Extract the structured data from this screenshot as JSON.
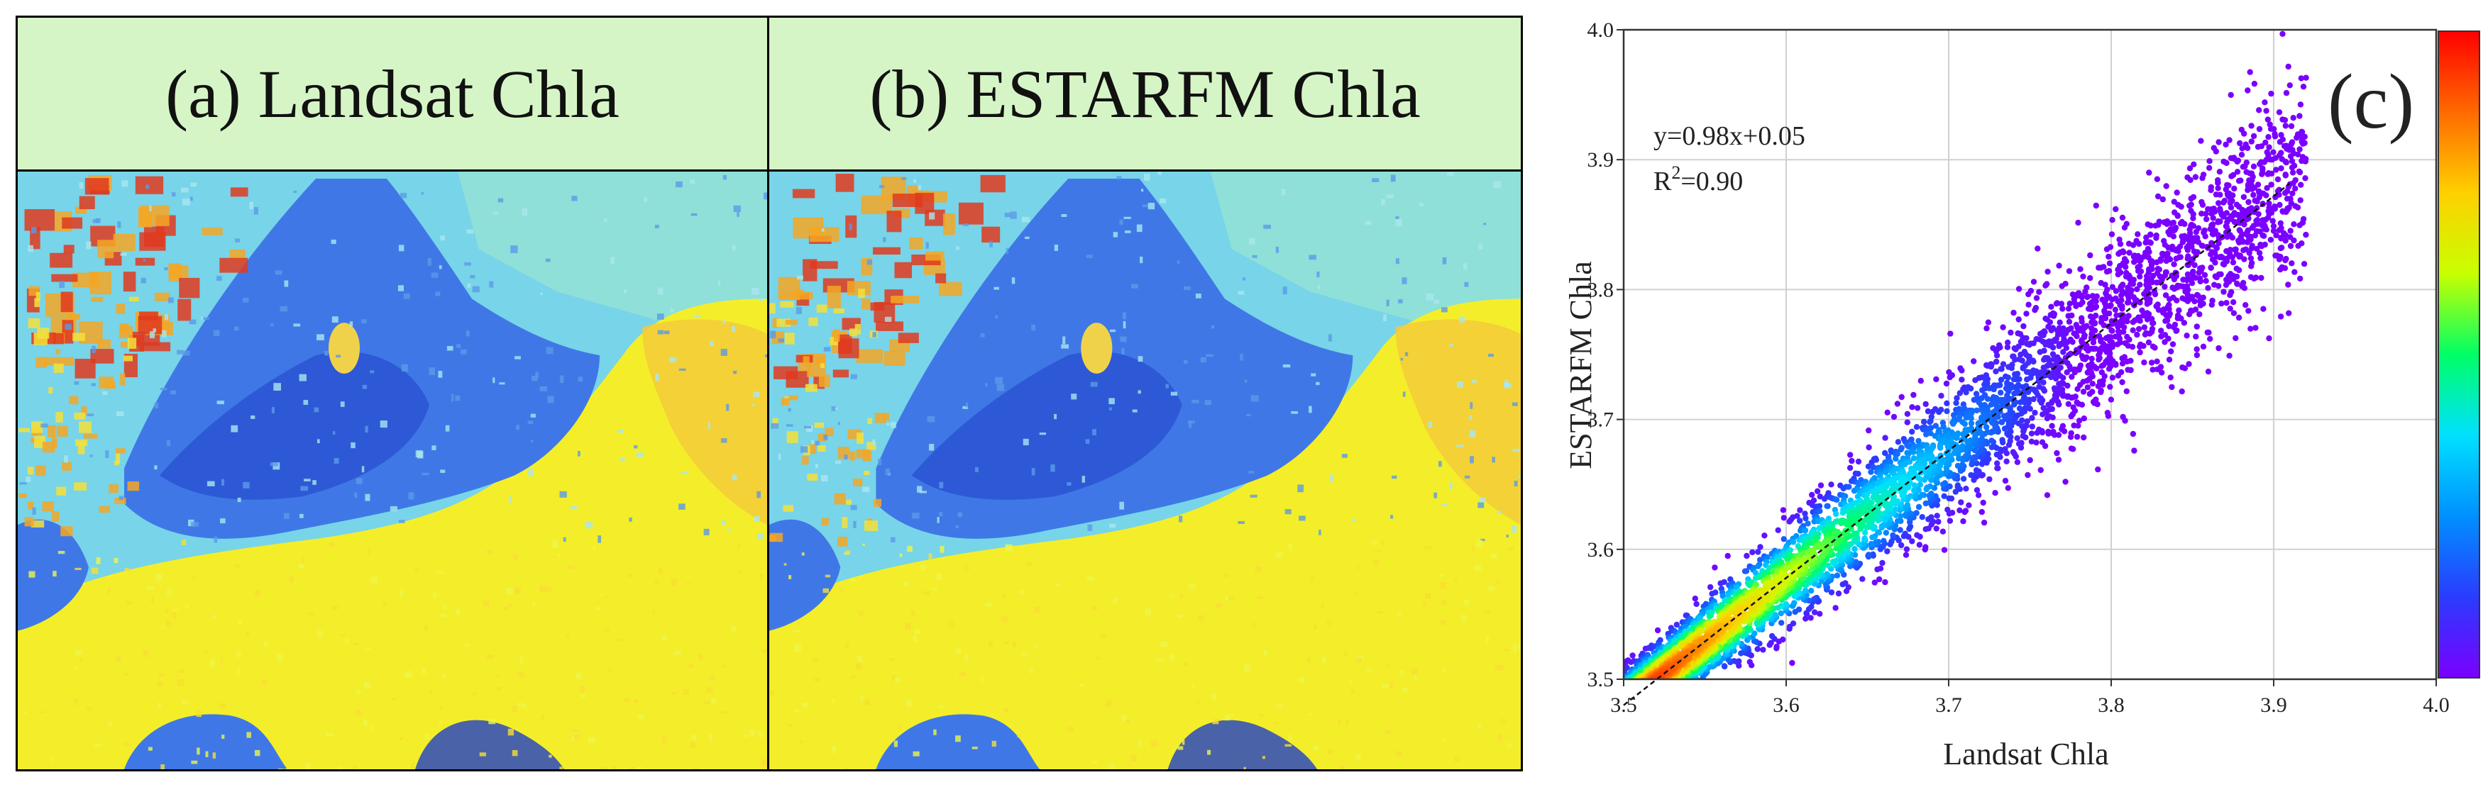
{
  "panel_a": {
    "title": "(a) Landsat Chla"
  },
  "panel_b": {
    "title": "(b) ESTARFM Chla"
  },
  "chart_data": {
    "type": "scatter",
    "panel_label": "(c)",
    "xlabel": "Landsat Chla",
    "ylabel": "ESTARFM Chla",
    "xlim": [
      3.5,
      4.0
    ],
    "ylim": [
      3.5,
      4.0
    ],
    "x_ticks": [
      "3.5",
      "3.6",
      "3.7",
      "3.8",
      "3.9",
      "4.0"
    ],
    "y_ticks": [
      "3.5",
      "3.6",
      "3.7",
      "3.8",
      "3.9",
      "4.0"
    ],
    "grid": true,
    "equation": "y=0.98x+0.05",
    "r2_label": "R",
    "r2_superscript": "2",
    "r2_value": "=0.90",
    "fit": {
      "slope": 0.98,
      "intercept": 0.05,
      "x_range": [
        3.5,
        3.91
      ]
    },
    "density_colorbar": {
      "position": "right",
      "colors": [
        "#7a00ff",
        "#2a3cff",
        "#0090ff",
        "#00e0ff",
        "#00ff66",
        "#c8ff00",
        "#ffd000",
        "#ff6a00",
        "#ff0000"
      ]
    },
    "point_color_sparse": "#7b2cff"
  },
  "map_colors": {
    "water_base": "#f4ee2a",
    "land_base": "#78d4e8",
    "blue_patch": "#3f78e6",
    "dark_blue": "#1f3fc8",
    "red_field": "#e03a1e",
    "orange": "#f5a623"
  }
}
